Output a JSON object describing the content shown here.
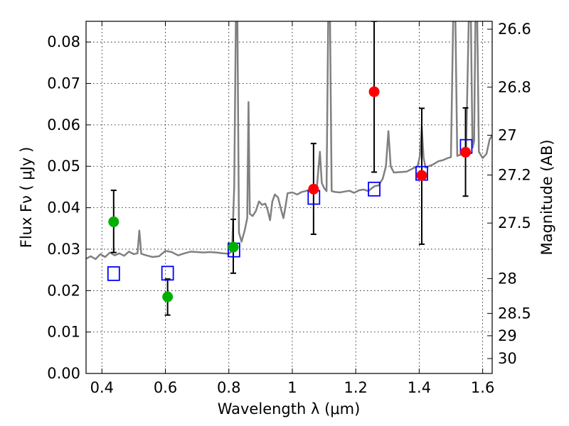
{
  "chart_data": {
    "type": "scatter",
    "xlabel": "Wavelength  λ (μm)",
    "ylabel": "Flux  Fν  ( μJy )",
    "ylabel_right": "Magnitude (AB)",
    "xlim": [
      0.35,
      1.63
    ],
    "ylim": [
      0.0,
      0.085
    ],
    "grid": true,
    "legend": "none",
    "x_ticks": [
      0.4,
      0.6,
      0.8,
      1.0,
      1.2,
      1.4,
      1.6
    ],
    "x_tick_labels": [
      "0.4",
      "0.6",
      "0.8",
      "1",
      "1.2",
      "1.4",
      "1.6"
    ],
    "y_ticks": [
      0.0,
      0.01,
      0.02,
      0.03,
      0.04,
      0.05,
      0.06,
      0.07,
      0.08
    ],
    "y_tick_labels": [
      "0.00",
      "0.01",
      "0.02",
      "0.03",
      "0.04",
      "0.05",
      "0.06",
      "0.07",
      "0.08"
    ],
    "right_axis_ticks": [
      {
        "label": "26.6",
        "flux": 0.0831
      },
      {
        "label": "26.8",
        "flux": 0.0691
      },
      {
        "label": "27",
        "flux": 0.0575
      },
      {
        "label": "27.2",
        "flux": 0.0479
      },
      {
        "label": "27.5",
        "flux": 0.0363
      },
      {
        "label": "28",
        "flux": 0.0229
      },
      {
        "label": "28.5",
        "flux": 0.0145
      },
      {
        "label": "29",
        "flux": 0.0091
      },
      {
        "label": "30",
        "flux": 0.0036
      }
    ],
    "series": [
      {
        "kind": "line",
        "color": "#808080",
        "points": [
          [
            0.35,
            0.0277
          ],
          [
            0.365,
            0.0283
          ],
          [
            0.38,
            0.0276
          ],
          [
            0.395,
            0.0288
          ],
          [
            0.41,
            0.0281
          ],
          [
            0.425,
            0.0292
          ],
          [
            0.44,
            0.0285
          ],
          [
            0.455,
            0.029
          ],
          [
            0.47,
            0.0284
          ],
          [
            0.485,
            0.0294
          ],
          [
            0.5,
            0.0288
          ],
          [
            0.512,
            0.029
          ],
          [
            0.518,
            0.0345
          ],
          [
            0.524,
            0.0289
          ],
          [
            0.54,
            0.0285
          ],
          [
            0.56,
            0.0281
          ],
          [
            0.58,
            0.0283
          ],
          [
            0.6,
            0.0296
          ],
          [
            0.62,
            0.0293
          ],
          [
            0.64,
            0.0285
          ],
          [
            0.66,
            0.029
          ],
          [
            0.68,
            0.0294
          ],
          [
            0.7,
            0.0293
          ],
          [
            0.72,
            0.0292
          ],
          [
            0.74,
            0.0293
          ],
          [
            0.76,
            0.0292
          ],
          [
            0.78,
            0.029
          ],
          [
            0.8,
            0.0289
          ],
          [
            0.81,
            0.0295
          ],
          [
            0.817,
            0.045
          ],
          [
            0.822,
            0.085
          ],
          [
            0.827,
            0.085
          ],
          [
            0.832,
            0.034
          ],
          [
            0.84,
            0.0318
          ],
          [
            0.85,
            0.0345
          ],
          [
            0.858,
            0.0375
          ],
          [
            0.862,
            0.0655
          ],
          [
            0.866,
            0.0385
          ],
          [
            0.875,
            0.038
          ],
          [
            0.885,
            0.0392
          ],
          [
            0.895,
            0.0415
          ],
          [
            0.905,
            0.0407
          ],
          [
            0.915,
            0.041
          ],
          [
            0.922,
            0.0395
          ],
          [
            0.93,
            0.037
          ],
          [
            0.937,
            0.0415
          ],
          [
            0.945,
            0.0432
          ],
          [
            0.955,
            0.0425
          ],
          [
            0.965,
            0.0395
          ],
          [
            0.972,
            0.0375
          ],
          [
            0.978,
            0.04
          ],
          [
            0.985,
            0.0435
          ],
          [
            1.0,
            0.0437
          ],
          [
            1.015,
            0.0432
          ],
          [
            1.03,
            0.0438
          ],
          [
            1.045,
            0.0441
          ],
          [
            1.06,
            0.0445
          ],
          [
            1.07,
            0.0448
          ],
          [
            1.078,
            0.0455
          ],
          [
            1.087,
            0.0535
          ],
          [
            1.093,
            0.046
          ],
          [
            1.1,
            0.0448
          ],
          [
            1.108,
            0.044
          ],
          [
            1.113,
            0.085
          ],
          [
            1.119,
            0.085
          ],
          [
            1.124,
            0.044
          ],
          [
            1.135,
            0.0438
          ],
          [
            1.15,
            0.0437
          ],
          [
            1.165,
            0.0439
          ],
          [
            1.18,
            0.0441
          ],
          [
            1.195,
            0.0436
          ],
          [
            1.21,
            0.0442
          ],
          [
            1.225,
            0.0444
          ],
          [
            1.24,
            0.044
          ],
          [
            1.25,
            0.0447
          ],
          [
            1.26,
            0.0452
          ],
          [
            1.272,
            0.0454
          ],
          [
            1.285,
            0.047
          ],
          [
            1.295,
            0.05
          ],
          [
            1.303,
            0.0585
          ],
          [
            1.31,
            0.05
          ],
          [
            1.32,
            0.0485
          ],
          [
            1.34,
            0.0486
          ],
          [
            1.36,
            0.0487
          ],
          [
            1.38,
            0.0495
          ],
          [
            1.395,
            0.05
          ],
          [
            1.402,
            0.0525
          ],
          [
            1.408,
            0.0595
          ],
          [
            1.414,
            0.052
          ],
          [
            1.42,
            0.0497
          ],
          [
            1.43,
            0.05
          ],
          [
            1.445,
            0.0505
          ],
          [
            1.46,
            0.0512
          ],
          [
            1.475,
            0.0515
          ],
          [
            1.49,
            0.052
          ],
          [
            1.5,
            0.0522
          ],
          [
            1.507,
            0.085
          ],
          [
            1.514,
            0.085
          ],
          [
            1.52,
            0.0525
          ],
          [
            1.53,
            0.0528
          ],
          [
            1.538,
            0.0535
          ],
          [
            1.548,
            0.0545
          ],
          [
            1.556,
            0.085
          ],
          [
            1.563,
            0.085
          ],
          [
            1.568,
            0.0545
          ],
          [
            1.573,
            0.056
          ],
          [
            1.577,
            0.085
          ],
          [
            1.583,
            0.085
          ],
          [
            1.588,
            0.0535
          ],
          [
            1.6,
            0.052
          ],
          [
            1.612,
            0.053
          ],
          [
            1.622,
            0.0565
          ],
          [
            1.63,
            0.0575
          ]
        ]
      },
      {
        "kind": "squares",
        "color": "#0000ff",
        "points": [
          [
            0.437,
            0.0241
          ],
          [
            0.607,
            0.0242
          ],
          [
            0.816,
            0.0298
          ],
          [
            1.068,
            0.0425
          ],
          [
            1.258,
            0.0445
          ],
          [
            1.408,
            0.0483
          ],
          [
            1.548,
            0.0548
          ]
        ]
      },
      {
        "kind": "circles",
        "color": "#00b000",
        "points": [
          {
            "x": 0.437,
            "y": 0.0366,
            "lo": 0.0292,
            "hi": 0.0442
          },
          {
            "x": 0.607,
            "y": 0.0185,
            "lo": 0.0141,
            "hi": 0.0228
          },
          {
            "x": 0.814,
            "y": 0.0305,
            "lo": 0.0242,
            "hi": 0.0372
          }
        ]
      },
      {
        "kind": "circles",
        "color": "#ff0000",
        "points": [
          {
            "x": 1.067,
            "y": 0.0445,
            "lo": 0.0336,
            "hi": 0.0555
          },
          {
            "x": 1.258,
            "y": 0.068,
            "lo": 0.0486,
            "hi": 0.085
          },
          {
            "x": 1.408,
            "y": 0.0478,
            "lo": 0.0312,
            "hi": 0.064
          },
          {
            "x": 1.546,
            "y": 0.0534,
            "lo": 0.0428,
            "hi": 0.0641
          }
        ]
      }
    ]
  }
}
